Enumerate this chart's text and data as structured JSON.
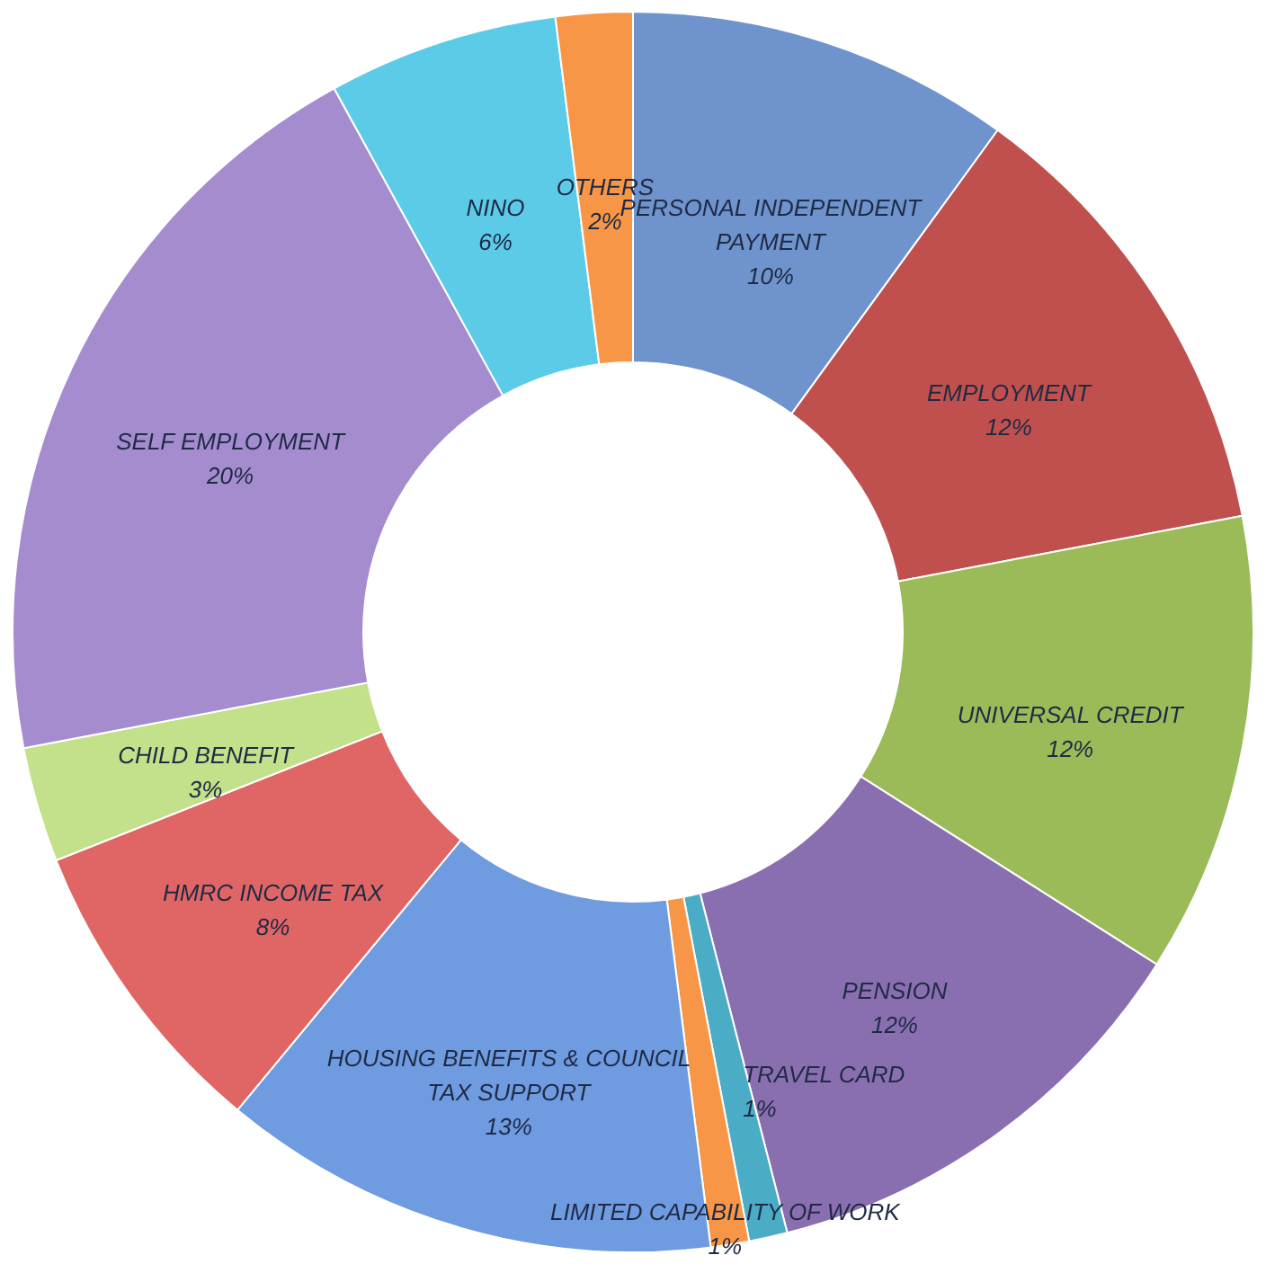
{
  "chart_data": {
    "type": "donut",
    "categories": [
      "PERSONAL INDEPENDENT PAYMENT",
      "EMPLOYMENT",
      "UNIVERSAL CREDIT",
      "PENSION",
      "TRAVEL CARD",
      "LIMITED CAPABILITY OF WORK",
      "HOUSING BENEFITS & COUNCIL TAX SUPPORT",
      "HMRC INCOME TAX",
      "CHILD BENEFIT",
      "SELF EMPLOYMENT",
      "NINO",
      "OTHERS"
    ],
    "values": [
      10,
      12,
      12,
      12,
      1,
      1,
      13,
      8,
      3,
      20,
      6,
      2
    ],
    "value_labels": [
      "10%",
      "12%",
      "12%",
      "12%",
      "1%",
      "1%",
      "13%",
      "8%",
      "3%",
      "20%",
      "6%",
      "2%"
    ],
    "colors": [
      "#6f93cc",
      "#c0504d",
      "#9bbb59",
      "#8a6fb0",
      "#4bacc6",
      "#f79646",
      "#6f9be0",
      "#e06666",
      "#c3e08a",
      "#a48ccf",
      "#5ccbe8",
      "#f79646"
    ],
    "legend": false
  }
}
